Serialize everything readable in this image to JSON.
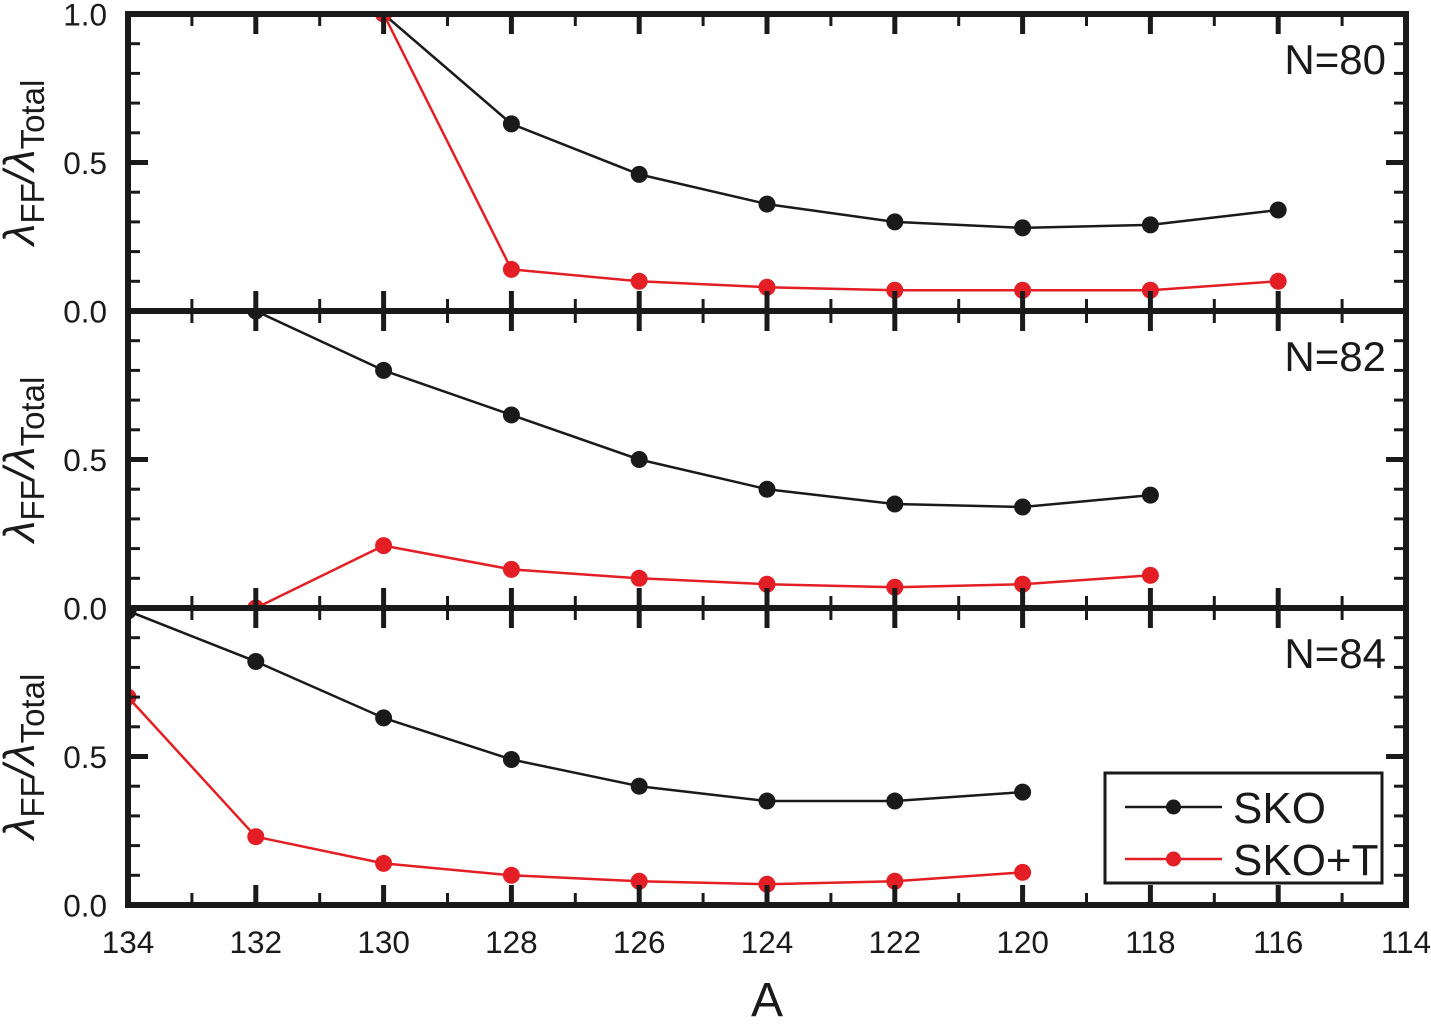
{
  "figure": {
    "background": "#ffffff",
    "text_color": "#1a1a1a",
    "x_axis": {
      "title": "A",
      "range": [
        134,
        114
      ],
      "ticks": [
        {
          "value": 134,
          "label": "134"
        },
        {
          "value": 132,
          "label": "132"
        },
        {
          "value": 130,
          "label": "130"
        },
        {
          "value": 128,
          "label": "128"
        },
        {
          "value": 126,
          "label": "126"
        },
        {
          "value": 124,
          "label": "124"
        },
        {
          "value": 122,
          "label": "122"
        },
        {
          "value": 120,
          "label": "120"
        },
        {
          "value": 118,
          "label": "118"
        },
        {
          "value": 116,
          "label": "116"
        },
        {
          "value": 114,
          "label": "114"
        }
      ],
      "minor_step": 1
    },
    "y_axis": {
      "title_parts": {
        "lambda1": "λ",
        "sub1": "FF",
        "lambda2": "/λ",
        "sub2": "Total"
      },
      "range": [
        0,
        1
      ],
      "major_ticks": [
        0,
        0.5,
        1
      ],
      "minor_step": 0.1
    },
    "panels": [
      {
        "label": "N=80",
        "y_tick_labels": [
          {
            "value": 1.0,
            "label": "1.0"
          },
          {
            "value": 0.5,
            "label": "0.5"
          },
          {
            "value": 0.0,
            "label": "0.0"
          }
        ]
      },
      {
        "label": "N=82",
        "y_tick_labels": [
          {
            "value": 0.5,
            "label": "0.5"
          },
          {
            "value": 0.0,
            "label": "0.0"
          }
        ]
      },
      {
        "label": "N=84",
        "y_tick_labels": [
          {
            "value": 0.5,
            "label": "0.5"
          },
          {
            "value": 0.0,
            "label": "0.0"
          }
        ]
      }
    ],
    "legend": {
      "entries": [
        {
          "label": "SKO",
          "color": "#1a1a1a"
        },
        {
          "label": "SKO+T",
          "color": "#e31e24"
        }
      ]
    },
    "colors": {
      "sko": "#1a1a1a",
      "sko_t": "#e31e24"
    }
  },
  "chart_data": [
    {
      "type": "line",
      "panel_label": "N=80",
      "xlabel": "A",
      "ylabel": "λFF/λTotal",
      "xlim": [
        134,
        114
      ],
      "ylim": [
        0,
        1
      ],
      "x": [
        130,
        128,
        126,
        124,
        122,
        120,
        118,
        116
      ],
      "series": [
        {
          "name": "SKO",
          "color": "#1a1a1a",
          "values": [
            1.0,
            0.63,
            0.46,
            0.36,
            0.3,
            0.28,
            0.29,
            0.34
          ]
        },
        {
          "name": "SKO+T",
          "color": "#e31e24",
          "values": [
            1.0,
            0.14,
            0.1,
            0.08,
            0.07,
            0.07,
            0.07,
            0.1
          ]
        }
      ]
    },
    {
      "type": "line",
      "panel_label": "N=82",
      "xlabel": "A",
      "ylabel": "λFF/λTotal",
      "xlim": [
        134,
        114
      ],
      "ylim": [
        0,
        1
      ],
      "x": [
        132,
        130,
        128,
        126,
        124,
        122,
        120,
        118
      ],
      "series": [
        {
          "name": "SKO",
          "color": "#1a1a1a",
          "values": [
            1.0,
            0.8,
            0.65,
            0.5,
            0.4,
            0.35,
            0.34,
            0.38
          ]
        },
        {
          "name": "SKO+T",
          "color": "#e31e24",
          "values": [
            0.0,
            0.21,
            0.13,
            0.1,
            0.08,
            0.07,
            0.08,
            0.11
          ]
        }
      ]
    },
    {
      "type": "line",
      "panel_label": "N=84",
      "xlabel": "A",
      "ylabel": "λFF/λTotal",
      "xlim": [
        134,
        114
      ],
      "ylim": [
        0,
        1
      ],
      "x": [
        134,
        132,
        130,
        128,
        126,
        124,
        122,
        120
      ],
      "series": [
        {
          "name": "SKO",
          "color": "#1a1a1a",
          "values": [
            0.99,
            0.82,
            0.63,
            0.49,
            0.4,
            0.35,
            0.35,
            0.38
          ]
        },
        {
          "name": "SKO+T",
          "color": "#e31e24",
          "values": [
            0.7,
            0.23,
            0.14,
            0.1,
            0.08,
            0.07,
            0.08,
            0.11
          ]
        }
      ]
    }
  ]
}
